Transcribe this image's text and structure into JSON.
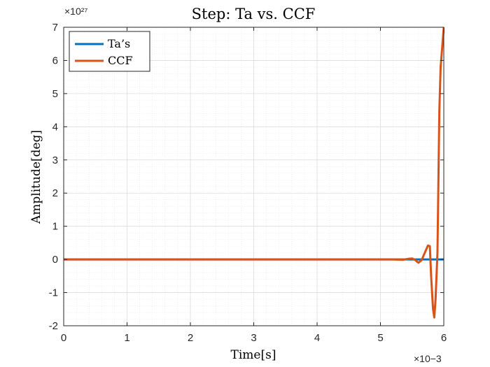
{
  "chart_data": {
    "type": "line",
    "title": "Step: Ta vs. CCF",
    "xlabel": "Time[s]",
    "ylabel": "Amplitude[deg]",
    "x_exponent": "×10−3",
    "y_exponent": "×10²⁷",
    "xlim": [
      0,
      6
    ],
    "ylim": [
      -2,
      7
    ],
    "xticks": [
      0,
      1,
      2,
      3,
      4,
      5,
      6
    ],
    "xtick_labels": [
      "0",
      "1",
      "2",
      "3",
      "4",
      "5",
      "6"
    ],
    "yticks": [
      -2,
      -1,
      0,
      1,
      2,
      3,
      4,
      5,
      6,
      7
    ],
    "ytick_labels": [
      "-2",
      "-1",
      "0",
      "1",
      "2",
      "3",
      "4",
      "5",
      "6",
      "7"
    ],
    "grid": true,
    "minor_grid": true,
    "legend_position": "top-left",
    "series": [
      {
        "name": "Ta’s",
        "color": "#0072BD",
        "x": [
          0,
          6
        ],
        "y": [
          0,
          0
        ]
      },
      {
        "name": "CCF",
        "color": "#D95319",
        "x": [
          0,
          5.0,
          5.2,
          5.35,
          5.45,
          5.5,
          5.55,
          5.6,
          5.65,
          5.7,
          5.75,
          5.78,
          5.8,
          5.83,
          5.85,
          5.87,
          5.9,
          5.93,
          5.95,
          6.0
        ],
        "y": [
          0,
          0,
          0,
          -0.01,
          0.02,
          0.03,
          -0.02,
          -0.1,
          -0.02,
          0.2,
          0.42,
          0.4,
          -0.5,
          -1.5,
          -1.75,
          -1.2,
          0.2,
          4.5,
          5.8,
          7.0
        ]
      }
    ]
  }
}
